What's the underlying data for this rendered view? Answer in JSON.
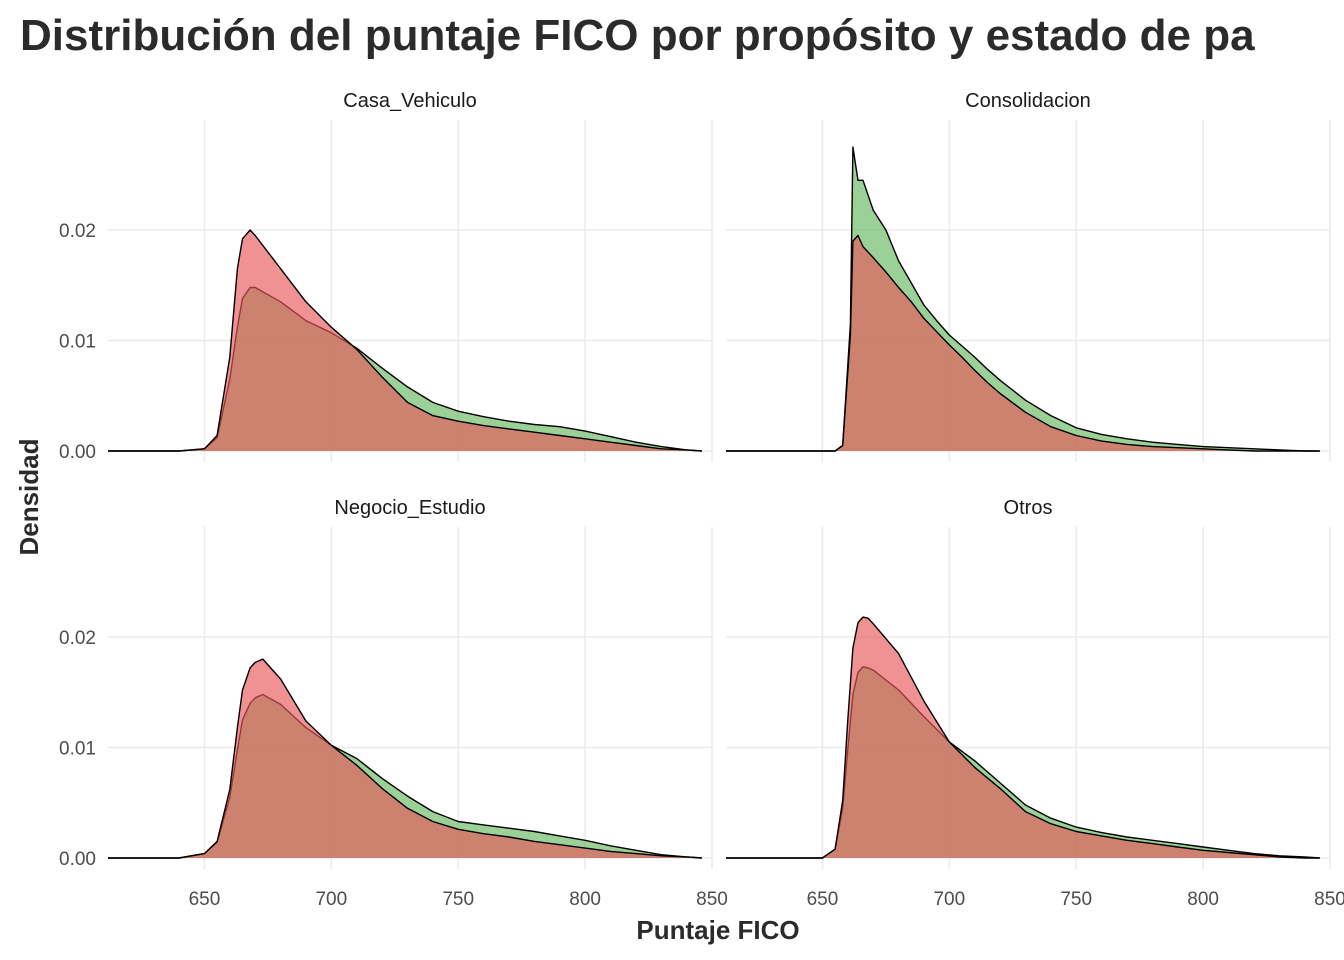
{
  "chart_data": {
    "type": "area",
    "title": "Distribución del puntaje FICO por propósito y estado de pa",
    "xlabel": "Puntaje FICO",
    "ylabel": "Densidad",
    "xlim": [
      612,
      850
    ],
    "ylim": [
      0,
      0.0285
    ],
    "x_ticks": [
      650,
      700,
      750,
      800,
      850
    ],
    "y_ticks": [
      0.0,
      0.01,
      0.02
    ],
    "y_tick_labels": [
      "0.00",
      "0.01",
      "0.02"
    ],
    "grid": true,
    "legend": "none",
    "colors": {
      "red_fill": "#e8585a",
      "green_fill": "#66b85e",
      "outline": "#000000"
    },
    "panels": [
      {
        "name": "Casa_Vehiculo",
        "series": [
          {
            "color": "green",
            "x": [
              612,
              640,
              650,
              655,
              660,
              663,
              665,
              668,
              670,
              680,
              690,
              700,
              710,
              720,
              730,
              740,
              750,
              760,
              770,
              780,
              790,
              800,
              810,
              820,
              830,
              840,
              846
            ],
            "y": [
              0,
              0,
              0.0002,
              0.0012,
              0.0065,
              0.0112,
              0.0138,
              0.0148,
              0.0148,
              0.0135,
              0.0118,
              0.0107,
              0.0093,
              0.0075,
              0.0058,
              0.0044,
              0.0036,
              0.0031,
              0.0027,
              0.0024,
              0.0022,
              0.0018,
              0.0013,
              0.0008,
              0.0004,
              0.0001,
              0
            ]
          },
          {
            "color": "red",
            "x": [
              612,
              640,
              650,
              655,
              660,
              663,
              665,
              668,
              670,
              680,
              690,
              700,
              710,
              720,
              730,
              740,
              750,
              760,
              770,
              780,
              790,
              800,
              810,
              820,
              830,
              840,
              846
            ],
            "y": [
              0,
              0,
              0.0002,
              0.0014,
              0.0085,
              0.0165,
              0.0192,
              0.02,
              0.0195,
              0.0165,
              0.0135,
              0.0112,
              0.0092,
              0.0067,
              0.0044,
              0.0032,
              0.0027,
              0.0023,
              0.002,
              0.0017,
              0.0014,
              0.0011,
              0.0008,
              0.0005,
              0.0002,
              0.0001,
              0
            ]
          }
        ]
      },
      {
        "name": "Consolidacion",
        "series": [
          {
            "color": "green",
            "x": [
              612,
              655,
              658,
              661,
              662,
              664,
              666,
              670,
              675,
              680,
              685,
              690,
              695,
              700,
              705,
              710,
              715,
              720,
              730,
              740,
              750,
              760,
              770,
              780,
              790,
              800,
              810,
              820,
              830,
              840,
              846
            ],
            "y": [
              0,
              0,
              0.0005,
              0.0115,
              0.0275,
              0.0245,
              0.0245,
              0.0218,
              0.02,
              0.0172,
              0.0152,
              0.0132,
              0.0118,
              0.0105,
              0.0095,
              0.0085,
              0.0074,
              0.0064,
              0.0046,
              0.0032,
              0.0021,
              0.0015,
              0.0011,
              0.0008,
              0.0006,
              0.0004,
              0.0003,
              0.0002,
              0.0001,
              0,
              0
            ]
          },
          {
            "color": "red",
            "x": [
              612,
              655,
              658,
              661,
              662,
              664,
              666,
              670,
              675,
              680,
              685,
              690,
              695,
              700,
              705,
              710,
              715,
              720,
              730,
              740,
              750,
              760,
              770,
              780,
              790,
              800,
              810,
              820,
              830,
              840,
              846
            ],
            "y": [
              0,
              0,
              0.0005,
              0.0105,
              0.019,
              0.0195,
              0.0185,
              0.0175,
              0.0162,
              0.0148,
              0.0135,
              0.012,
              0.0108,
              0.0096,
              0.0085,
              0.0073,
              0.0062,
              0.0052,
              0.0035,
              0.0022,
              0.0014,
              0.0009,
              0.0006,
              0.0004,
              0.0003,
              0.0002,
              0.0001,
              0,
              0,
              0,
              0
            ]
          }
        ]
      },
      {
        "name": "Negocio_Estudio",
        "series": [
          {
            "color": "green",
            "x": [
              612,
              640,
              650,
              655,
              660,
              663,
              665,
              668,
              670,
              673,
              680,
              690,
              700,
              710,
              720,
              730,
              740,
              750,
              760,
              770,
              780,
              790,
              800,
              810,
              820,
              830,
              840,
              846
            ],
            "y": [
              0,
              0,
              0.0004,
              0.0014,
              0.0055,
              0.0098,
              0.0125,
              0.014,
              0.0145,
              0.0148,
              0.0139,
              0.0118,
              0.0102,
              0.009,
              0.0072,
              0.0056,
              0.0042,
              0.0033,
              0.003,
              0.0027,
              0.0024,
              0.002,
              0.0016,
              0.0011,
              0.0007,
              0.0003,
              0.0001,
              0
            ]
          },
          {
            "color": "red",
            "x": [
              612,
              640,
              650,
              655,
              660,
              663,
              665,
              668,
              670,
              673,
              680,
              690,
              700,
              710,
              720,
              730,
              740,
              750,
              760,
              770,
              780,
              790,
              800,
              810,
              820,
              830,
              840,
              846
            ],
            "y": [
              0,
              0,
              0.0004,
              0.0015,
              0.0062,
              0.0118,
              0.0152,
              0.0172,
              0.0177,
              0.018,
              0.0162,
              0.0124,
              0.0102,
              0.0084,
              0.0063,
              0.0045,
              0.0033,
              0.0026,
              0.0022,
              0.0019,
              0.0015,
              0.0012,
              0.0009,
              0.0006,
              0.0004,
              0.0002,
              0.0001,
              0
            ]
          }
        ]
      },
      {
        "name": "Otros",
        "series": [
          {
            "color": "green",
            "x": [
              612,
              650,
              655,
              658,
              660,
              662,
              664,
              666,
              668,
              670,
              680,
              690,
              700,
              710,
              720,
              730,
              740,
              750,
              760,
              770,
              780,
              790,
              800,
              810,
              820,
              830,
              840,
              846
            ],
            "y": [
              0,
              0,
              0.0008,
              0.0045,
              0.0098,
              0.0148,
              0.0168,
              0.0173,
              0.0172,
              0.017,
              0.0152,
              0.0128,
              0.0105,
              0.0088,
              0.0068,
              0.0048,
              0.0036,
              0.0028,
              0.0023,
              0.0019,
              0.0016,
              0.0013,
              0.001,
              0.0007,
              0.0004,
              0.0002,
              0.0001,
              0
            ]
          },
          {
            "color": "red",
            "x": [
              612,
              650,
              655,
              658,
              660,
              662,
              664,
              666,
              668,
              670,
              680,
              690,
              700,
              710,
              720,
              730,
              740,
              750,
              760,
              770,
              780,
              790,
              800,
              810,
              820,
              830,
              840,
              846
            ],
            "y": [
              0,
              0,
              0.0008,
              0.0052,
              0.0125,
              0.019,
              0.0213,
              0.0218,
              0.0217,
              0.0212,
              0.0185,
              0.0142,
              0.0105,
              0.0082,
              0.0063,
              0.0042,
              0.0031,
              0.0024,
              0.002,
              0.0016,
              0.0013,
              0.001,
              0.0007,
              0.0005,
              0.0003,
              0.0001,
              0,
              0
            ]
          }
        ]
      }
    ]
  }
}
